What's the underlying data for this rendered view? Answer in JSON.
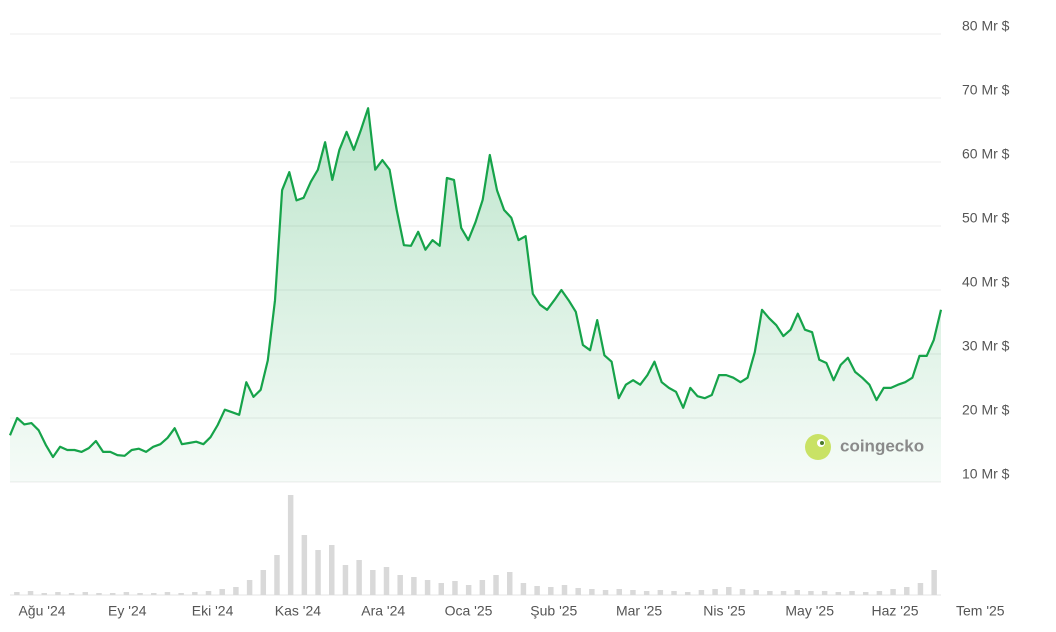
{
  "chart_data": {
    "type": "area",
    "color": "#16a34a",
    "ylim": [
      10,
      80
    ],
    "yticks": [
      {
        "value": 10,
        "label": "10 Mr $"
      },
      {
        "value": 20,
        "label": "20 Mr $"
      },
      {
        "value": 30,
        "label": "30 Mr $"
      },
      {
        "value": 40,
        "label": "40 Mr $"
      },
      {
        "value": 50,
        "label": "50 Mr $"
      },
      {
        "value": 60,
        "label": "60 Mr $"
      },
      {
        "value": 70,
        "label": "70 Mr $"
      },
      {
        "value": 80,
        "label": "80 Mr $"
      }
    ],
    "xtick_labels": [
      "Ağu '24",
      "Ey '24",
      "Eki '24",
      "Kas '24",
      "Ara '24",
      "Oca '25",
      "Şub '25",
      "Mar '25",
      "Nis '25",
      "May '25",
      "Haz '25",
      "Tem '25"
    ],
    "values": [
      17.3,
      20,
      19,
      19.2,
      18.1,
      15.8,
      13.9,
      15.5,
      15,
      15,
      14.7,
      15.3,
      16.4,
      14.7,
      14.7,
      14.2,
      14.1,
      15,
      15.2,
      14.7,
      15.5,
      15.9,
      16.9,
      18.4,
      15.9,
      16.1,
      16.3,
      15.9,
      17,
      18.9,
      21.3,
      20.9,
      20.5,
      25.6,
      23.3,
      24.4,
      29,
      38.4,
      55.6,
      58.4,
      54,
      54.4,
      56.9,
      58.8,
      63.1,
      57.2,
      61.9,
      64.7,
      61.9,
      65,
      68.4,
      58.8,
      60.3,
      58.8,
      52.5,
      47,
      46.9,
      49.1,
      46.3,
      47.8,
      46.9,
      57.5,
      57.2,
      49.7,
      47.8,
      50.6,
      54.1,
      61.1,
      55.6,
      52.5,
      51.3,
      47.8,
      48.4,
      39.4,
      37.7,
      36.9,
      38.4,
      40,
      38.4,
      36.6,
      31.4,
      30.6,
      35.3,
      29.8,
      28.8,
      23.1,
      25.2,
      25.9,
      25.2,
      26.7,
      28.8,
      25.6,
      24.7,
      24.1,
      21.6,
      24.7,
      23.4,
      23.1,
      23.6,
      26.7,
      26.7,
      26.3,
      25.6,
      26.3,
      30.3,
      36.9,
      35.6,
      34.5,
      32.8,
      33.8,
      36.3,
      33.8,
      33.4,
      29.1,
      28.6,
      25.9,
      28.3,
      29.4,
      27.2,
      26.3,
      25.2,
      22.8,
      24.7,
      24.7,
      25.2,
      25.6,
      26.3,
      29.7,
      29.7,
      32.2,
      36.9
    ],
    "volume_values": [
      0.3,
      0.4,
      0.2,
      0.3,
      0.2,
      0.3,
      0.2,
      0.2,
      0.3,
      0.2,
      0.2,
      0.3,
      0.2,
      0.3,
      0.4,
      0.6,
      0.8,
      1.5,
      2.5,
      4,
      10,
      6,
      4.5,
      5,
      3,
      3.5,
      2.5,
      2.8,
      2,
      1.8,
      1.5,
      1.2,
      1.4,
      1,
      1.5,
      2,
      2.3,
      1.2,
      0.9,
      0.8,
      1,
      0.7,
      0.6,
      0.5,
      0.6,
      0.5,
      0.4,
      0.5,
      0.4,
      0.3,
      0.5,
      0.6,
      0.8,
      0.6,
      0.5,
      0.4,
      0.4,
      0.5,
      0.4,
      0.4,
      0.3,
      0.4,
      0.3,
      0.4,
      0.6,
      0.8,
      1.2,
      2.5
    ],
    "watermark": "coingecko"
  }
}
